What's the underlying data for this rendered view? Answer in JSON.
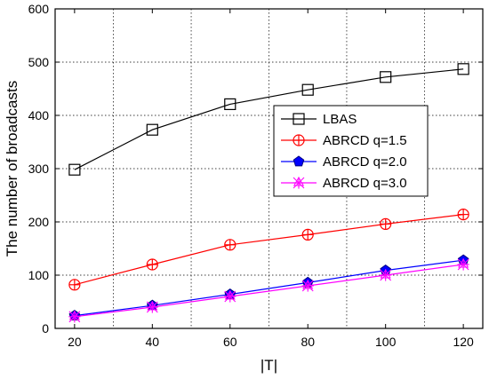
{
  "chart_data": {
    "type": "line",
    "title": "",
    "xlabel": "|T|",
    "ylabel": "The number of broadcasts",
    "x": [
      20,
      40,
      60,
      80,
      100,
      120
    ],
    "xlim": [
      15,
      125
    ],
    "ylim": [
      0,
      600
    ],
    "xticks": [
      20,
      40,
      60,
      80,
      100,
      120
    ],
    "yticks": [
      0,
      100,
      200,
      300,
      400,
      500,
      600
    ],
    "grid": true,
    "legend_position": "center-right",
    "series": [
      {
        "name": "LBAS",
        "values": [
          298,
          373,
          421,
          448,
          472,
          487
        ],
        "color": "#000000",
        "marker": "square"
      },
      {
        "name": "ABRCD q=1.5",
        "values": [
          82,
          120,
          157,
          176,
          196,
          214
        ],
        "color": "#ff0000",
        "marker": "circle-plus"
      },
      {
        "name": "ABRCD q=2.0",
        "values": [
          24,
          43,
          64,
          86,
          109,
          128
        ],
        "color": "#0000ff",
        "marker": "pentagon"
      },
      {
        "name": "ABRCD q=3.0",
        "values": [
          22,
          40,
          60,
          80,
          100,
          120
        ],
        "color": "#ff00ff",
        "marker": "star"
      }
    ]
  }
}
